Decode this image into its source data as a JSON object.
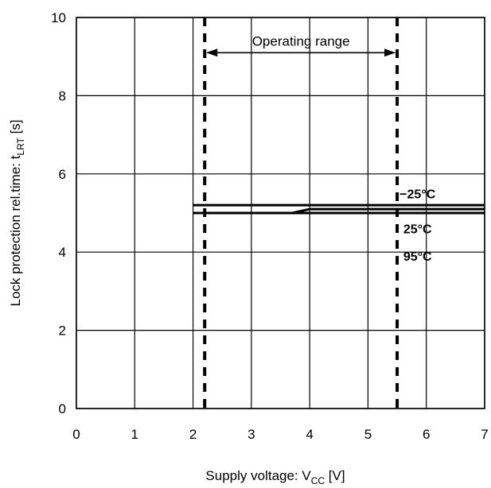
{
  "chart_data": {
    "type": "line",
    "xlabel": {
      "main": "Supply voltage: V",
      "sub": "CC",
      "unit": " [V]"
    },
    "ylabel": {
      "main": "Lock protection rel.time: t",
      "sub": "LRT",
      "unit": " [s]"
    },
    "xlim": [
      0,
      7
    ],
    "ylim": [
      0,
      10
    ],
    "xticks": [
      0,
      1,
      2,
      3,
      4,
      5,
      6,
      7
    ],
    "yticks": [
      0,
      2,
      4,
      6,
      8,
      10
    ],
    "grid": true,
    "series": [
      {
        "name": "−25°C",
        "x": [
          2,
          3,
          4,
          5,
          6,
          7
        ],
        "y": [
          5.2,
          5.2,
          5.2,
          5.2,
          5.2,
          5.2
        ]
      },
      {
        "name": "25°C",
        "x": [
          2,
          3,
          3.7,
          4,
          5,
          5.4,
          6,
          7
        ],
        "y": [
          5.0,
          5.0,
          5.0,
          5.1,
          5.1,
          5.1,
          5.1,
          5.1
        ]
      },
      {
        "name": "95°C",
        "x": [
          2,
          3,
          4,
          5,
          6,
          7
        ],
        "y": [
          5.0,
          5.0,
          5.0,
          5.0,
          5.0,
          5.0
        ]
      }
    ],
    "operating_range": {
      "label": "Operating range",
      "from": 2.2,
      "to": 5.5
    }
  }
}
